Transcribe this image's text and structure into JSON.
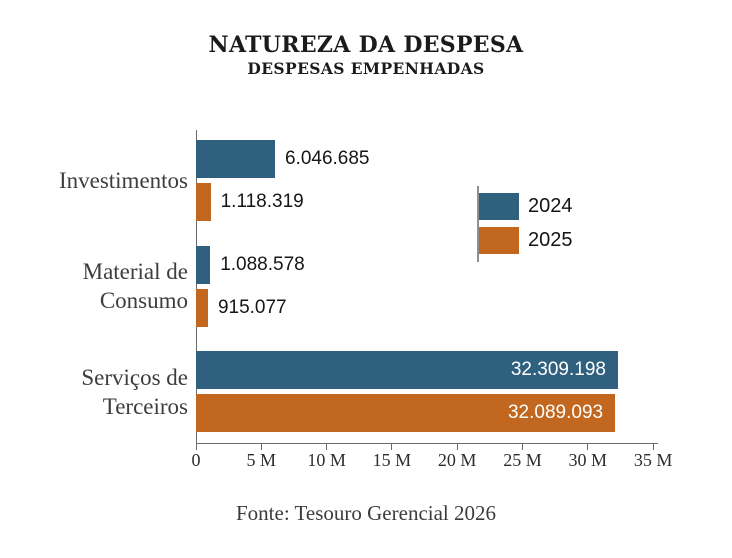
{
  "chart_data": {
    "type": "bar",
    "orientation": "horizontal",
    "title": "NATUREZA DA DESPESA",
    "subtitle": "DESPESAS EMPENHADAS",
    "categories": [
      "Investimentos",
      "Material de Consumo",
      "Serviços de Terceiros"
    ],
    "category_lines": [
      [
        "Investimentos"
      ],
      [
        "Material de",
        "Consumo"
      ],
      [
        "Serviços de",
        "Terceiros"
      ]
    ],
    "series": [
      {
        "name": "2024",
        "color": "#2f607e",
        "values": [
          6046685,
          1088578,
          32309198
        ],
        "value_labels": [
          "6.046.685",
          "1.088.578",
          "32.309.198"
        ]
      },
      {
        "name": "2025",
        "color": "#c2671f",
        "values": [
          1118319,
          915077,
          32089093
        ],
        "value_labels": [
          "1.118.319",
          "915.077",
          "32.089.093"
        ]
      }
    ],
    "x_axis": {
      "tick_labels": [
        "0",
        "5 M",
        "10 M",
        "15 M",
        "20 M",
        "25 M",
        "30 M",
        "35 M"
      ],
      "tick_values": [
        0,
        5000000,
        10000000,
        15000000,
        20000000,
        25000000,
        30000000,
        35000000
      ],
      "min": 0,
      "max": 35000000
    },
    "xlabel": "",
    "ylabel": "",
    "grid": false,
    "legend": {
      "position": "middle-right",
      "entries": [
        "2024",
        "2025"
      ]
    },
    "source": "Fonte: Tesouro Gerencial 2026"
  }
}
